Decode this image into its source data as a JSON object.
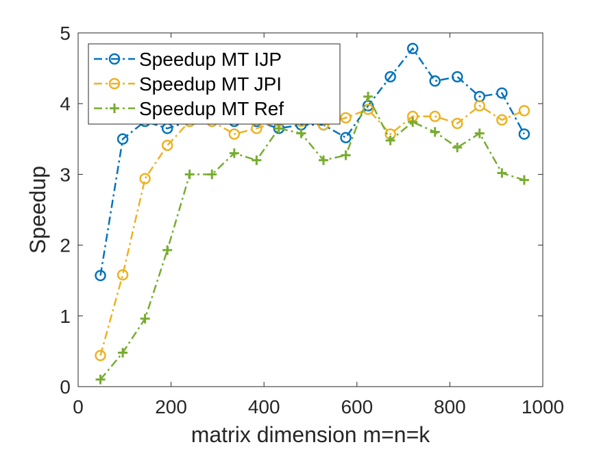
{
  "chart_data": {
    "type": "line",
    "title": "",
    "xlabel": "matrix dimension m=n=k",
    "ylabel": "Speedup",
    "xlim": [
      0,
      1000
    ],
    "ylim": [
      0,
      5
    ],
    "xticks": [
      0,
      200,
      400,
      600,
      800,
      1000
    ],
    "yticks": [
      0,
      1,
      2,
      3,
      4,
      5
    ],
    "grid": false,
    "legend_position": "top-left",
    "series": [
      {
        "name": "Speedup MT IJP",
        "color": "#0072BD",
        "marker": "circle",
        "line_style": "dash-dot",
        "x": [
          48,
          96,
          144,
          192,
          240,
          288,
          336,
          384,
          432,
          480,
          528,
          576,
          624,
          672,
          720,
          768,
          816,
          864,
          912,
          960
        ],
        "y": [
          1.57,
          3.5,
          3.75,
          3.65,
          3.75,
          3.75,
          3.75,
          3.75,
          3.65,
          3.7,
          3.7,
          3.52,
          3.97,
          4.38,
          4.78,
          4.32,
          4.38,
          4.1,
          4.15,
          3.57
        ]
      },
      {
        "name": "Speedup MT JPI",
        "color": "#EDB120",
        "marker": "circle",
        "line_style": "dash-dot",
        "x": [
          48,
          96,
          144,
          192,
          240,
          288,
          336,
          384,
          432,
          480,
          528,
          576,
          624,
          672,
          720,
          768,
          816,
          864,
          912,
          960
        ],
        "y": [
          0.44,
          1.58,
          2.94,
          3.41,
          3.75,
          3.75,
          3.57,
          3.65,
          3.75,
          3.75,
          3.7,
          3.8,
          3.92,
          3.57,
          3.82,
          3.82,
          3.72,
          3.97,
          3.77,
          3.9
        ]
      },
      {
        "name": "Speedup MT Ref",
        "color": "#77AC30",
        "marker": "plus",
        "line_style": "dash-dot",
        "x": [
          48,
          96,
          144,
          192,
          240,
          288,
          336,
          384,
          432,
          480,
          528,
          576,
          624,
          672,
          720,
          768,
          816,
          864,
          912,
          960
        ],
        "y": [
          0.1,
          0.48,
          0.96,
          1.93,
          3.0,
          3.0,
          3.3,
          3.2,
          3.65,
          3.58,
          3.2,
          3.27,
          4.1,
          3.48,
          3.74,
          3.6,
          3.38,
          3.58,
          3.02,
          2.92
        ]
      }
    ]
  }
}
